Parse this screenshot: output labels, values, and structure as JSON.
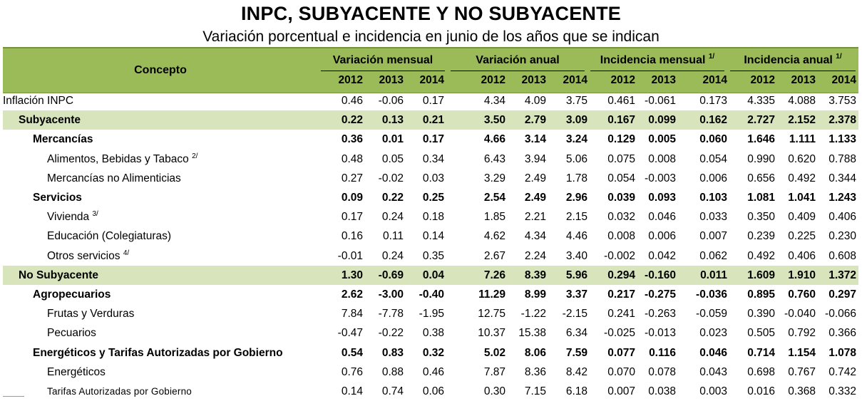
{
  "title": "INPC, SUBYACENTE Y NO SUBYACENTE",
  "subtitle": "Variación porcentual e incidencia en junio de los años que se indican",
  "header": {
    "concepto": "Concepto",
    "groups": [
      {
        "label": "Variación mensual",
        "note": ""
      },
      {
        "label": "Variación anual",
        "note": ""
      },
      {
        "label": "Incidencia mensual",
        "note": "1/"
      },
      {
        "label": "Incidencia anual",
        "note": "1/"
      }
    ],
    "years": [
      "2012",
      "2013",
      "2014"
    ]
  },
  "rows": [
    {
      "label": "Inflación INPC",
      "note": "",
      "level": 0,
      "style": "plain",
      "values": [
        "0.46",
        "-0.06",
        "0.17",
        "4.34",
        "4.09",
        "3.75",
        "0.461",
        "-0.061",
        "0.173",
        "4.335",
        "4.088",
        "3.753"
      ]
    },
    {
      "label": "Subyacente",
      "note": "",
      "level": 1,
      "style": "highlight",
      "values": [
        "0.22",
        "0.13",
        "0.21",
        "3.50",
        "2.79",
        "3.09",
        "0.167",
        "0.099",
        "0.162",
        "2.727",
        "2.152",
        "2.378"
      ]
    },
    {
      "label": "Mercancías",
      "note": "",
      "level": 2,
      "style": "bold",
      "values": [
        "0.36",
        "0.01",
        "0.17",
        "4.66",
        "3.14",
        "3.24",
        "0.129",
        "0.005",
        "0.060",
        "1.646",
        "1.111",
        "1.133"
      ]
    },
    {
      "label": "Alimentos, Bebidas y Tabaco",
      "note": "2/",
      "level": 3,
      "style": "plain",
      "values": [
        "0.48",
        "0.05",
        "0.34",
        "6.43",
        "3.94",
        "5.06",
        "0.075",
        "0.008",
        "0.054",
        "0.990",
        "0.620",
        "0.788"
      ]
    },
    {
      "label": "Mercancías no Alimenticias",
      "note": "",
      "level": 3,
      "style": "plain",
      "values": [
        "0.27",
        "-0.02",
        "0.03",
        "3.29",
        "2.49",
        "1.78",
        "0.054",
        "-0.003",
        "0.006",
        "0.656",
        "0.492",
        "0.344"
      ]
    },
    {
      "label": "Servicios",
      "note": "",
      "level": 2,
      "style": "bold",
      "values": [
        "0.09",
        "0.22",
        "0.25",
        "2.54",
        "2.49",
        "2.96",
        "0.039",
        "0.093",
        "0.103",
        "1.081",
        "1.041",
        "1.243"
      ]
    },
    {
      "label": "Vivienda",
      "note": "3/",
      "level": 3,
      "style": "plain",
      "values": [
        "0.17",
        "0.24",
        "0.18",
        "1.85",
        "2.21",
        "2.15",
        "0.032",
        "0.046",
        "0.033",
        "0.350",
        "0.409",
        "0.406"
      ]
    },
    {
      "label": "Educación (Colegiaturas)",
      "note": "",
      "level": 3,
      "style": "plain",
      "values": [
        "0.16",
        "0.11",
        "0.14",
        "4.62",
        "4.34",
        "4.46",
        "0.008",
        "0.006",
        "0.007",
        "0.239",
        "0.225",
        "0.230"
      ]
    },
    {
      "label": "Otros servicios",
      "note": "4/",
      "level": 3,
      "style": "plain",
      "values": [
        "-0.01",
        "0.24",
        "0.35",
        "2.67",
        "2.24",
        "3.40",
        "-0.002",
        "0.042",
        "0.062",
        "0.492",
        "0.406",
        "0.608"
      ]
    },
    {
      "label": "No Subyacente",
      "note": "",
      "level": 1,
      "style": "highlight",
      "values": [
        "1.30",
        "-0.69",
        "0.04",
        "7.26",
        "8.39",
        "5.96",
        "0.294",
        "-0.160",
        "0.011",
        "1.609",
        "1.910",
        "1.372"
      ]
    },
    {
      "label": "Agropecuarios",
      "note": "",
      "level": 2,
      "style": "bold",
      "values": [
        "2.62",
        "-3.00",
        "-0.40",
        "11.29",
        "8.99",
        "3.37",
        "0.217",
        "-0.275",
        "-0.036",
        "0.895",
        "0.760",
        "0.297"
      ]
    },
    {
      "label": "Frutas y Verduras",
      "note": "",
      "level": 3,
      "style": "plain",
      "values": [
        "7.84",
        "-7.78",
        "-1.95",
        "12.75",
        "-1.22",
        "-2.15",
        "0.241",
        "-0.263",
        "-0.059",
        "0.390",
        "-0.040",
        "-0.066"
      ]
    },
    {
      "label": "Pecuarios",
      "note": "",
      "level": 3,
      "style": "plain",
      "values": [
        "-0.47",
        "-0.22",
        "0.38",
        "10.37",
        "15.38",
        "6.34",
        "-0.025",
        "-0.013",
        "0.023",
        "0.505",
        "0.792",
        "0.366"
      ]
    },
    {
      "label": "Energéticos y Tarifas Autorizadas por Gobierno",
      "note": "",
      "level": 2,
      "style": "bold",
      "values": [
        "0.54",
        "0.83",
        "0.32",
        "5.02",
        "8.06",
        "7.59",
        "0.077",
        "0.116",
        "0.046",
        "0.714",
        "1.154",
        "1.078"
      ]
    },
    {
      "label": "Energéticos",
      "note": "",
      "level": 3,
      "style": "plain",
      "values": [
        "0.76",
        "0.88",
        "0.46",
        "7.87",
        "8.36",
        "8.42",
        "0.070",
        "0.078",
        "0.043",
        "0.698",
        "0.767",
        "0.742"
      ]
    },
    {
      "label": "Tarifas Autorizadas por Gobierno",
      "note": "",
      "level": 3,
      "style": "small",
      "values": [
        "0.14",
        "0.74",
        "0.06",
        "0.30",
        "7.15",
        "6.18",
        "0.007",
        "0.038",
        "0.003",
        "0.016",
        "0.368",
        "0.332"
      ]
    }
  ]
}
